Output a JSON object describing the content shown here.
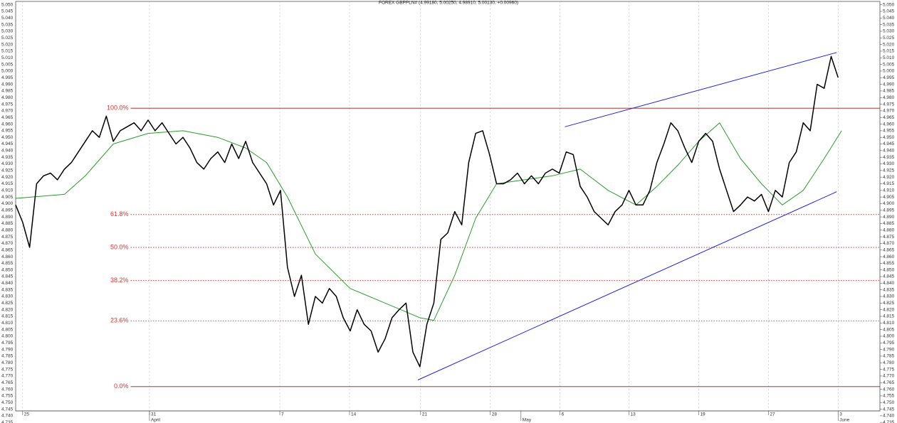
{
  "chart_data": {
    "type": "line",
    "title": "FOREX GBPPLN# (4.99180, 5.00250, 4.98910, 5.00130, +0.00960)",
    "xlim": [
      0,
      124
    ],
    "ylim": [
      4.7335,
      5.0525
    ],
    "xticks": [
      {
        "value": 1,
        "label": "25"
      },
      {
        "value": 19.2,
        "label": "31"
      },
      {
        "value": 37.9,
        "label": "7"
      },
      {
        "value": 47.9,
        "label": "14"
      },
      {
        "value": 58.1,
        "label": "21"
      },
      {
        "value": 68.1,
        "label": "28"
      },
      {
        "value": 78.1,
        "label": "6"
      },
      {
        "value": 88,
        "label": "13"
      },
      {
        "value": 98,
        "label": "19"
      },
      {
        "value": 108,
        "label": "27"
      },
      {
        "value": 118,
        "label": "3"
      }
    ],
    "month_ticks": [
      {
        "value": 19.2,
        "label": "April"
      },
      {
        "value": 72.5,
        "label": "May"
      },
      {
        "value": 118,
        "label": "June"
      }
    ],
    "yticks": [
      4.735,
      {
        "value": 4.74,
        "label": "4.740"
      },
      4.745,
      {
        "value": 4.75,
        "label": "4.750"
      },
      4.755,
      {
        "value": 4.76,
        "label": "4.760"
      },
      4.765,
      {
        "value": 4.77,
        "label": "4.770"
      },
      4.775,
      {
        "value": 4.78,
        "label": "4.780"
      },
      4.785,
      {
        "value": 4.79,
        "label": "4.790"
      },
      4.795,
      {
        "value": 4.8,
        "label": "4.800"
      },
      4.805,
      {
        "value": 4.81,
        "label": "4.810"
      },
      4.815,
      {
        "value": 4.82,
        "label": "4.820"
      },
      4.825,
      {
        "value": 4.83,
        "label": "4.830"
      },
      4.835,
      {
        "value": 4.84,
        "label": "4.840"
      },
      4.845,
      {
        "value": 4.85,
        "label": "4.850"
      },
      4.855,
      {
        "value": 4.86,
        "label": "4.860"
      },
      4.865,
      {
        "value": 4.87,
        "label": "4.870"
      },
      4.875,
      {
        "value": 4.88,
        "label": "4.880"
      },
      4.885,
      {
        "value": 4.89,
        "label": "4.890"
      },
      4.895,
      {
        "value": 4.9,
        "label": "4.900"
      },
      4.905,
      {
        "value": 4.91,
        "label": "4.910"
      },
      4.915,
      {
        "value": 4.92,
        "label": "4.920"
      },
      4.925,
      {
        "value": 4.93,
        "label": "4.930"
      },
      4.935,
      {
        "value": 4.94,
        "label": "4.940"
      },
      4.945,
      {
        "value": 4.95,
        "label": "4.950"
      },
      4.955,
      {
        "value": 4.96,
        "label": "4.960"
      },
      4.965,
      {
        "value": 4.97,
        "label": "4.970"
      },
      4.975,
      {
        "value": 4.98,
        "label": "4.980"
      },
      4.985,
      {
        "value": 4.99,
        "label": "4.990"
      },
      4.995,
      {
        "value": 5,
        "label": "5.000"
      },
      5.005,
      {
        "value": 5.01,
        "label": "5.010"
      },
      5.015,
      {
        "value": 5.02,
        "label": "5.020"
      },
      5.025,
      {
        "value": 5.03,
        "label": "5.030"
      },
      5.035,
      {
        "value": 5.04,
        "label": "5.040"
      },
      5.045,
      {
        "value": 5.05,
        "label": "5.050"
      }
    ],
    "grid": true,
    "series": [
      {
        "color": "#000000",
        "x": [
          0,
          1,
          2,
          3,
          4,
          5,
          6,
          7,
          8,
          9,
          10,
          11,
          12,
          13,
          14,
          15,
          16,
          17,
          18,
          19,
          20,
          21,
          22,
          23,
          24,
          25,
          26,
          27,
          28,
          29,
          30,
          31,
          32,
          33,
          34,
          35,
          36,
          37,
          38,
          39,
          40,
          41,
          42,
          43,
          44,
          45,
          46,
          47,
          48,
          49,
          50,
          51,
          52,
          53,
          54,
          55,
          56,
          57,
          58,
          59,
          60,
          61,
          62,
          63,
          64,
          65,
          66,
          67,
          68,
          69,
          70,
          71,
          72,
          73,
          74,
          75,
          76,
          77,
          78,
          79,
          80,
          81,
          82,
          83,
          84,
          85,
          86,
          87,
          88,
          89,
          90,
          91,
          92,
          93,
          94,
          95,
          96,
          97,
          98,
          99,
          100,
          101,
          102,
          103,
          104,
          105,
          106,
          107,
          108,
          109,
          110,
          111,
          112,
          113,
          114,
          115,
          116,
          117,
          118
        ],
        "values": [
          4.899,
          4.886,
          4.867,
          4.915,
          4.921,
          4.923,
          4.918,
          4.926,
          4.931,
          4.939,
          4.947,
          4.955,
          4.95,
          4.966,
          4.947,
          4.955,
          4.958,
          4.961,
          4.955,
          4.963,
          4.955,
          4.961,
          4.953,
          4.945,
          4.95,
          4.942,
          4.931,
          4.926,
          4.934,
          4.939,
          4.931,
          4.945,
          4.934,
          4.947,
          4.931,
          4.923,
          4.915,
          4.899,
          4.91,
          4.852,
          4.83,
          4.846,
          4.809,
          4.83,
          4.825,
          4.836,
          4.83,
          4.814,
          4.804,
          4.82,
          4.809,
          4.804,
          4.788,
          4.798,
          4.814,
          4.82,
          4.825,
          4.788,
          4.777,
          4.809,
          4.825,
          4.873,
          4.878,
          4.894,
          4.884,
          4.931,
          4.953,
          4.955,
          4.937,
          4.915,
          4.915,
          4.918,
          4.923,
          4.915,
          4.921,
          4.915,
          4.923,
          4.926,
          4.923,
          4.939,
          4.937,
          4.913,
          4.905,
          4.894,
          4.889,
          4.884,
          4.894,
          4.899,
          4.91,
          4.899,
          4.899,
          4.91,
          4.931,
          4.945,
          4.961,
          4.955,
          4.942,
          4.931,
          4.947,
          4.953,
          4.947,
          4.926,
          4.91,
          4.894,
          4.899,
          4.905,
          4.902,
          4.907,
          4.894,
          4.91,
          4.905,
          4.931,
          4.939,
          4.961,
          4.955,
          4.99,
          4.987,
          5.011,
          4.995
        ]
      },
      {
        "color": "#2a9d2a",
        "x": [
          0,
          7,
          10,
          14,
          19,
          24,
          29,
          33,
          36,
          39,
          43,
          48,
          53,
          58,
          60,
          63,
          66,
          69,
          73,
          77,
          81,
          85,
          89,
          92,
          95,
          98,
          101,
          104,
          107,
          110,
          113,
          116,
          118.5
        ],
        "values": [
          4.904,
          4.907,
          4.921,
          4.945,
          4.953,
          4.955,
          4.95,
          4.942,
          4.931,
          4.905,
          4.862,
          4.836,
          4.825,
          4.814,
          4.812,
          4.846,
          4.889,
          4.915,
          4.918,
          4.921,
          4.926,
          4.91,
          4.899,
          4.913,
          4.929,
          4.947,
          4.961,
          4.934,
          4.915,
          4.899,
          4.91,
          4.934,
          4.955
        ]
      },
      {
        "color": "#2020e0",
        "x": [
          57.7,
          117.8
        ],
        "values": [
          4.767,
          4.909
        ]
      },
      {
        "color": "#2020e0",
        "x": [
          78.8,
          117.8
        ],
        "values": [
          4.958,
          5.014
        ]
      }
    ],
    "fib_start": 16.5,
    "fib_levels": [
      {
        "label": "100.0%",
        "value": 4.972,
        "style": "solid",
        "color": "#a01818"
      },
      {
        "label": "61.8%",
        "value": 4.8918,
        "style": "dotted",
        "color": "#e03030"
      },
      {
        "label": "50.0%",
        "value": 4.867,
        "style": "dotted",
        "color": "#e03030"
      },
      {
        "label": "38.2%",
        "value": 4.842,
        "style": "dotted",
        "color": "#e03030"
      },
      {
        "label": "23.6%",
        "value": 4.8116,
        "style": "dotted",
        "color": "#e03030"
      },
      {
        "label": "0.0%",
        "value": 4.762,
        "style": "solid",
        "color": "#a01818"
      }
    ]
  }
}
